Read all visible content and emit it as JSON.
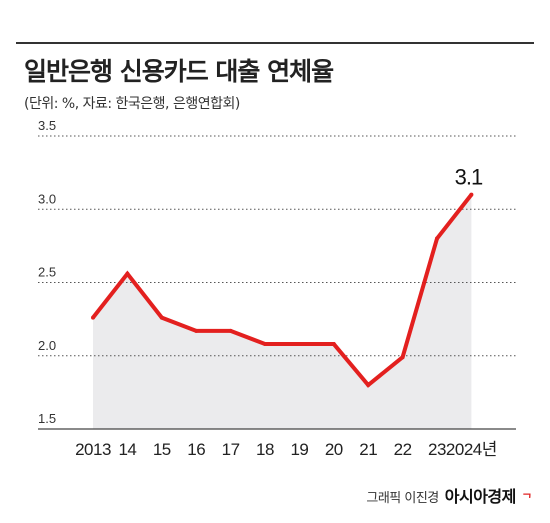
{
  "header": {
    "title": "일반은행 신용카드 대출 연체율",
    "subtitle": "(단위: %, 자료: 한국은행, 은행연합회)"
  },
  "footer": {
    "credit": "그래픽 이진경",
    "brand": "아시아경제",
    "brand_mark": "ᄀ"
  },
  "colors": {
    "line": "#e3201f",
    "area": "#ebebed",
    "grid": "#555555"
  },
  "chart_data": {
    "type": "area",
    "title": "일반은행 신용카드 대출 연체율",
    "categories": [
      "2013",
      "14",
      "15",
      "16",
      "17",
      "18",
      "19",
      "20",
      "21",
      "22",
      "23",
      "2024년"
    ],
    "series": [
      {
        "values": [
          2.26,
          2.56,
          2.26,
          2.17,
          2.17,
          2.08,
          2.08,
          2.08,
          1.8,
          1.99,
          2.8,
          3.1
        ]
      }
    ],
    "ylim": [
      1.5,
      3.5
    ],
    "yticks": [
      "1.5",
      "2.0",
      "2.5",
      "3.0",
      "3.5"
    ],
    "annotation": {
      "label": "3.1",
      "index": 11
    },
    "grid": "horizontal dotted"
  }
}
